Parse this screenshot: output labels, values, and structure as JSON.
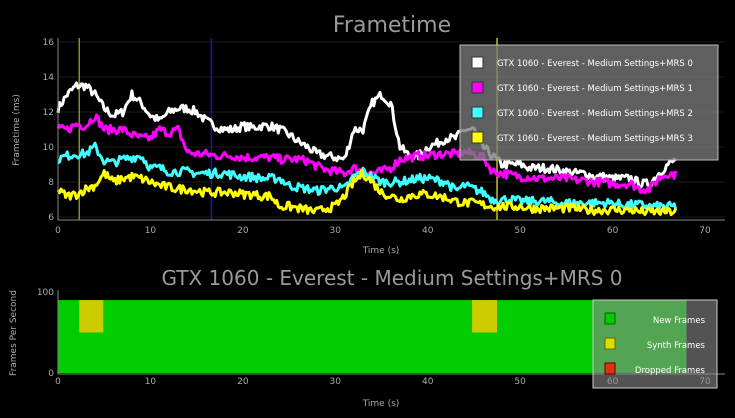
{
  "chart_data": [
    {
      "type": "line",
      "title": "Frametime",
      "xlabel": "Time (s)",
      "ylabel": "Frametime (ms)",
      "xlim": [
        0,
        70
      ],
      "ylim": [
        6,
        16
      ],
      "xticks": [
        "0",
        "10",
        "20",
        "30",
        "40",
        "50",
        "60",
        "70"
      ],
      "yticks": [
        "6",
        "8",
        "10",
        "12",
        "14",
        "16"
      ],
      "grid": true,
      "legend_position": "top-right",
      "markers": [
        {
          "x": 2.3,
          "color": "#8a8a30"
        },
        {
          "x": 16.6,
          "color": "#1a1aa0"
        },
        {
          "x": 47.5,
          "color": "#c8c020"
        }
      ],
      "x": [
        0,
        1,
        2,
        3,
        4,
        5,
        6,
        7,
        8,
        9,
        10,
        11,
        12,
        13,
        14,
        15,
        16,
        17,
        18,
        19,
        20,
        21,
        22,
        23,
        24,
        25,
        26,
        27,
        28,
        29,
        30,
        31,
        32,
        33,
        34,
        35,
        36,
        37,
        38,
        39,
        40,
        41,
        42,
        43,
        44,
        45,
        46,
        47,
        48,
        49,
        50,
        51,
        52,
        53,
        54,
        55,
        56,
        57,
        58,
        59,
        60,
        61,
        62,
        63,
        64,
        65,
        66,
        67
      ],
      "series": [
        {
          "name": "GTX 1060 - Everest - Medium Settings+MRS 0",
          "color": "#ffffff",
          "values": [
            12.2,
            13,
            13.5,
            13.5,
            13,
            12.2,
            11.8,
            12,
            13,
            12.5,
            11.8,
            11.5,
            12,
            12.2,
            12.2,
            12,
            11.5,
            11.2,
            11,
            11,
            11.2,
            11.1,
            11.2,
            11.2,
            11,
            10.7,
            10.3,
            10,
            9.6,
            9.5,
            9.4,
            9.3,
            11,
            11,
            12.5,
            13,
            12.5,
            10,
            9.5,
            9.5,
            10,
            10.2,
            10.5,
            10.5,
            11,
            11,
            10,
            9.5,
            9,
            9,
            9,
            8.8,
            8.8,
            8.8,
            8.7,
            8.6,
            8.5,
            8.5,
            8.3,
            8.3,
            8.2,
            8.2,
            8.2,
            7.9,
            7.9,
            8.5,
            9,
            9.3
          ]
        },
        {
          "name": "GTX 1060 - Everest - Medium Settings+MRS 1",
          "color": "#ff00ff",
          "values": [
            11,
            11,
            11.3,
            11.2,
            11.8,
            11,
            11,
            11,
            10.7,
            10.5,
            10.5,
            11,
            10.8,
            11,
            9.7,
            9.6,
            9.6,
            9.5,
            9.5,
            9.5,
            9.4,
            9.4,
            9.4,
            9.4,
            9.3,
            9.3,
            9.3,
            9.2,
            8.9,
            8.7,
            8.6,
            8.5,
            8.8,
            8.6,
            8.5,
            8.6,
            8.8,
            9.3,
            9.4,
            9.5,
            9.5,
            9.6,
            9.6,
            9.6,
            9.7,
            9.6,
            9.4,
            8.6,
            8.5,
            8.4,
            8.3,
            8.3,
            8.2,
            8.2,
            8.2,
            8.2,
            8.1,
            8.1,
            8,
            8,
            7.9,
            7.9,
            7.9,
            7.6,
            7.6,
            8.2,
            8.5,
            8.4
          ]
        },
        {
          "name": "GTX 1060 - Everest - Medium Settings+MRS 2",
          "color": "#40ffff",
          "values": [
            9.3,
            9.5,
            9.6,
            9.6,
            10,
            9.2,
            9.1,
            9.3,
            9.4,
            9.5,
            8.8,
            8.8,
            8.6,
            8.6,
            8.6,
            8.5,
            8.5,
            8.5,
            8.5,
            8.4,
            8.3,
            8.3,
            8.2,
            8.2,
            8.2,
            7.8,
            7.7,
            7.6,
            7.5,
            7.6,
            7.7,
            7.6,
            8.3,
            8.6,
            8.3,
            8,
            8,
            8,
            8.1,
            8.2,
            8.2,
            8.1,
            8,
            7.5,
            7.8,
            7.6,
            7.4,
            7,
            7,
            7,
            6.9,
            6.9,
            6.9,
            6.9,
            6.8,
            6.8,
            6.8,
            6.8,
            6.8,
            6.8,
            6.8,
            6.7,
            6.7,
            6.7,
            6.6,
            6.6,
            6.6,
            6.6
          ]
        },
        {
          "name": "GTX 1060 - Everest - Medium Settings+MRS 3",
          "color": "#ffff00",
          "values": [
            7.5,
            7.2,
            7.3,
            7.6,
            7.8,
            8.5,
            8,
            8.2,
            8.3,
            8.2,
            8,
            7.8,
            7.7,
            7.6,
            7.6,
            7.5,
            7.4,
            7.4,
            7.4,
            7.4,
            7.3,
            7.3,
            7.2,
            7.2,
            6.6,
            6.6,
            6.5,
            6.4,
            6.3,
            6.5,
            6.6,
            7.2,
            8,
            8.5,
            8,
            7.4,
            7.2,
            7,
            7.2,
            7.3,
            7.3,
            7.2,
            7.1,
            6.9,
            6.8,
            6.8,
            6.7,
            6.6,
            6.6,
            6.6,
            6.6,
            6.5,
            6.5,
            6.5,
            6.5,
            6.5,
            6.5,
            6.4,
            6.4,
            6.4,
            6.4,
            6.4,
            6.4,
            6.3,
            6.3,
            6.3,
            6.3,
            6.3
          ]
        }
      ]
    },
    {
      "type": "area",
      "title": "GTX 1060 - Everest - Medium Settings+MRS 0",
      "xlabel": "Time (s)",
      "ylabel": "Frames Per Second",
      "xlim": [
        0,
        70
      ],
      "ylim": [
        0,
        100
      ],
      "xticks": [
        "0",
        "10",
        "20",
        "30",
        "40",
        "50",
        "60",
        "70"
      ],
      "yticks": [
        "0",
        "100"
      ],
      "legend_position": "bottom-right",
      "new_frames": {
        "name": "New Frames",
        "color": "#00cc00",
        "fps": 90,
        "x_range": [
          0,
          68
        ]
      },
      "synth_frames": {
        "name": "Synth Frames",
        "color": "#cccc00",
        "intervals": [
          [
            2.3,
            4.9
          ],
          [
            44.8,
            47.5
          ]
        ],
        "fps_range": [
          50,
          90
        ]
      },
      "dropped_frames": {
        "name": "Dropped Frames",
        "color": "#dd3311"
      }
    }
  ]
}
